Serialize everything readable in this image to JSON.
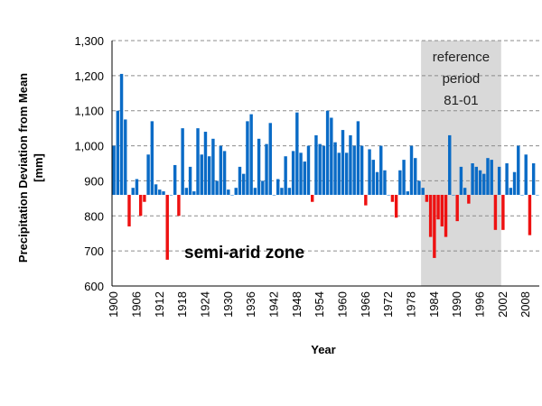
{
  "chart_data": {
    "type": "bar",
    "xlabel": "Year",
    "ylabel_line1": "Precipitation Deviation from Mean",
    "ylabel_line2": "[mm]",
    "ylim": [
      600,
      1300
    ],
    "yticks": [
      600,
      700,
      800,
      900,
      1000,
      1100,
      1200,
      1300
    ],
    "ytick_labels": [
      "600",
      "700",
      "800",
      "900",
      "1,000",
      "1,100",
      "1,200",
      "1,300"
    ],
    "baseline": 860,
    "grid": true,
    "x_start": 1900,
    "x_end": 2011,
    "xtick_years": [
      1900,
      1906,
      1912,
      1918,
      1924,
      1930,
      1936,
      1942,
      1948,
      1954,
      1960,
      1966,
      1972,
      1978,
      1984,
      1990,
      1996,
      2002,
      2008
    ],
    "positive_color": "#0a6bc6",
    "negative_color": "#ee1111",
    "reference_color": "#d9d9d9",
    "annotation": "semi-arid zone",
    "reference_period": {
      "start": 1981,
      "end": 2001,
      "label_lines": [
        "reference",
        "period",
        "81-01"
      ]
    },
    "years": [
      1900,
      1901,
      1902,
      1903,
      1904,
      1905,
      1906,
      1907,
      1908,
      1909,
      1910,
      1911,
      1912,
      1913,
      1914,
      1915,
      1916,
      1917,
      1918,
      1919,
      1920,
      1921,
      1922,
      1923,
      1924,
      1925,
      1926,
      1927,
      1928,
      1929,
      1930,
      1931,
      1932,
      1933,
      1934,
      1935,
      1936,
      1937,
      1938,
      1939,
      1940,
      1941,
      1942,
      1943,
      1944,
      1945,
      1946,
      1947,
      1948,
      1949,
      1950,
      1951,
      1952,
      1953,
      1954,
      1955,
      1956,
      1957,
      1958,
      1959,
      1960,
      1961,
      1962,
      1963,
      1964,
      1965,
      1966,
      1967,
      1968,
      1969,
      1970,
      1971,
      1972,
      1973,
      1974,
      1975,
      1976,
      1977,
      1978,
      1979,
      1980,
      1981,
      1982,
      1983,
      1984,
      1985,
      1986,
      1987,
      1988,
      1989,
      1990,
      1991,
      1992,
      1993,
      1994,
      1995,
      1996,
      1997,
      1998,
      1999,
      2000,
      2001,
      2002,
      2003,
      2004,
      2005,
      2006,
      2007,
      2008,
      2009,
      2010,
      2011
    ],
    "values": [
      1000,
      1100,
      1205,
      1075,
      770,
      880,
      905,
      800,
      840,
      975,
      1070,
      890,
      875,
      870,
      675,
      860,
      945,
      800,
      1050,
      880,
      940,
      870,
      1050,
      975,
      1040,
      970,
      1020,
      900,
      1000,
      985,
      875,
      860,
      880,
      940,
      920,
      1070,
      1090,
      880,
      1020,
      900,
      1005,
      1065,
      860,
      905,
      880,
      970,
      880,
      985,
      1095,
      980,
      955,
      1000,
      840,
      1030,
      1005,
      1000,
      1100,
      1080,
      1010,
      980,
      1045,
      980,
      1030,
      1000,
      1070,
      1000,
      830,
      990,
      960,
      925,
      1000,
      930,
      860,
      840,
      795,
      930,
      960,
      870,
      1000,
      965,
      900,
      880,
      840,
      740,
      680,
      790,
      770,
      740,
      1030,
      860,
      785,
      940,
      880,
      835,
      950,
      940,
      930,
      920,
      965,
      960,
      760,
      940,
      760,
      950,
      880,
      925,
      1000,
      860,
      975,
      745,
      950,
      860
    ]
  }
}
